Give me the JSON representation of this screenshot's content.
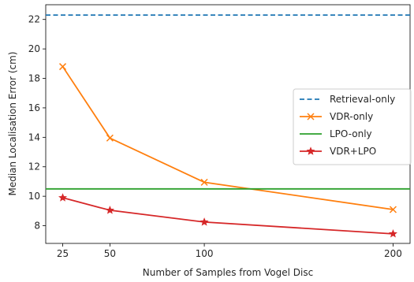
{
  "chart_data": {
    "type": "line",
    "xlabel": "Number of Samples from Vogel Disc",
    "ylabel": "Median Localisation Error (cm)",
    "xlim": [
      16,
      209
    ],
    "ylim": [
      6.8,
      23.0
    ],
    "xticks": [
      25,
      50,
      100,
      200
    ],
    "yticks": [
      8,
      10,
      12,
      14,
      16,
      18,
      20,
      22
    ],
    "grid": false,
    "legend_position": "center-right",
    "series": [
      {
        "name": "Retrieval-only",
        "color": "#1f77b4",
        "linestyle": "dashed",
        "marker": "none",
        "x": [
          16,
          209
        ],
        "y": [
          22.3,
          22.3
        ]
      },
      {
        "name": "VDR-only",
        "color": "#ff7f0e",
        "linestyle": "solid",
        "marker": "x",
        "x": [
          25,
          50,
          100,
          200
        ],
        "y": [
          18.8,
          13.95,
          10.95,
          9.1
        ]
      },
      {
        "name": "LPO-only",
        "color": "#2ca02c",
        "linestyle": "solid",
        "marker": "none",
        "x": [
          16,
          209
        ],
        "y": [
          10.5,
          10.5
        ]
      },
      {
        "name": "VDR+LPO",
        "color": "#d62728",
        "linestyle": "solid",
        "marker": "star",
        "x": [
          25,
          50,
          100,
          200
        ],
        "y": [
          9.9,
          9.05,
          8.25,
          7.45
        ]
      }
    ]
  }
}
